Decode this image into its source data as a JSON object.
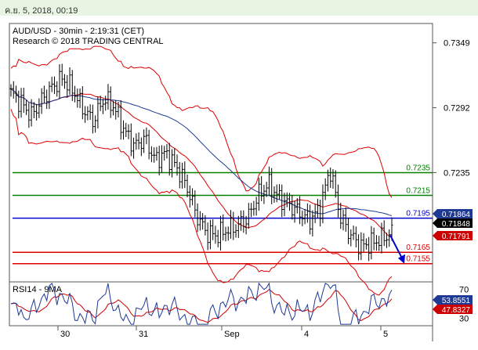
{
  "header": {
    "timestamp": "ค.ย. 5, 2018, 00:19"
  },
  "chart_data": {
    "type": "candlestick",
    "title": "AUD/USD - 30min - 2:19:31 (CET)",
    "subtitle": "Research © 2018 TRADING CENTRAL",
    "x_tick_labels": [
      "30",
      "31",
      "Sep",
      "4",
      "5"
    ],
    "y_tick_labels": [
      "0.7349",
      "0.7292",
      "0.7235"
    ],
    "ylim": [
      0.7139,
      0.7366
    ],
    "levels": [
      {
        "label": "0.7235",
        "value": 0.7235,
        "color": "#008000"
      },
      {
        "label": "0.7215",
        "value": 0.7215,
        "color": "#008000"
      },
      {
        "label": "0.7195",
        "value": 0.7195,
        "color": "#0000cc"
      },
      {
        "label": "0.7165",
        "value": 0.7165,
        "color": "#dd0000"
      },
      {
        "label": "0.7155",
        "value": 0.7155,
        "color": "#dd0000"
      }
    ],
    "value_tags": [
      {
        "label": "0.71864",
        "value": 0.71864,
        "color": "#1f3a93"
      },
      {
        "label": "0.71848",
        "value": 0.71848,
        "color": "#000000"
      },
      {
        "label": "0.71791",
        "value": 0.71791,
        "color": "#cc0000"
      }
    ],
    "price_path": [
      0.7305,
      0.7296,
      0.7285,
      0.7299,
      0.731,
      0.7318,
      0.7308,
      0.7291,
      0.728,
      0.73,
      0.7293,
      0.7272,
      0.7258,
      0.7265,
      0.7246,
      0.7252,
      0.7241,
      0.7225,
      0.7198,
      0.7182,
      0.718,
      0.7185,
      0.7188,
      0.7195,
      0.7215,
      0.7225,
      0.7213,
      0.7207,
      0.72,
      0.7193,
      0.7203,
      0.7238,
      0.7196,
      0.718,
      0.717,
      0.7173,
      0.7177,
      0.7182
    ],
    "rsi_panel": {
      "label": "RSI14 - 9MA",
      "tick_labels": [
        "70",
        "30"
      ],
      "ylim": [
        20,
        80
      ],
      "value_tags": [
        {
          "label": "53.8551",
          "value": 53.8551,
          "color": "#1f3a93"
        },
        {
          "label": "47.8327",
          "value": 47.8327,
          "color": "#cc0000"
        }
      ]
    },
    "forecast_arrow": {
      "from": 0.718,
      "to": 0.7155,
      "color": "#0000cc"
    }
  }
}
